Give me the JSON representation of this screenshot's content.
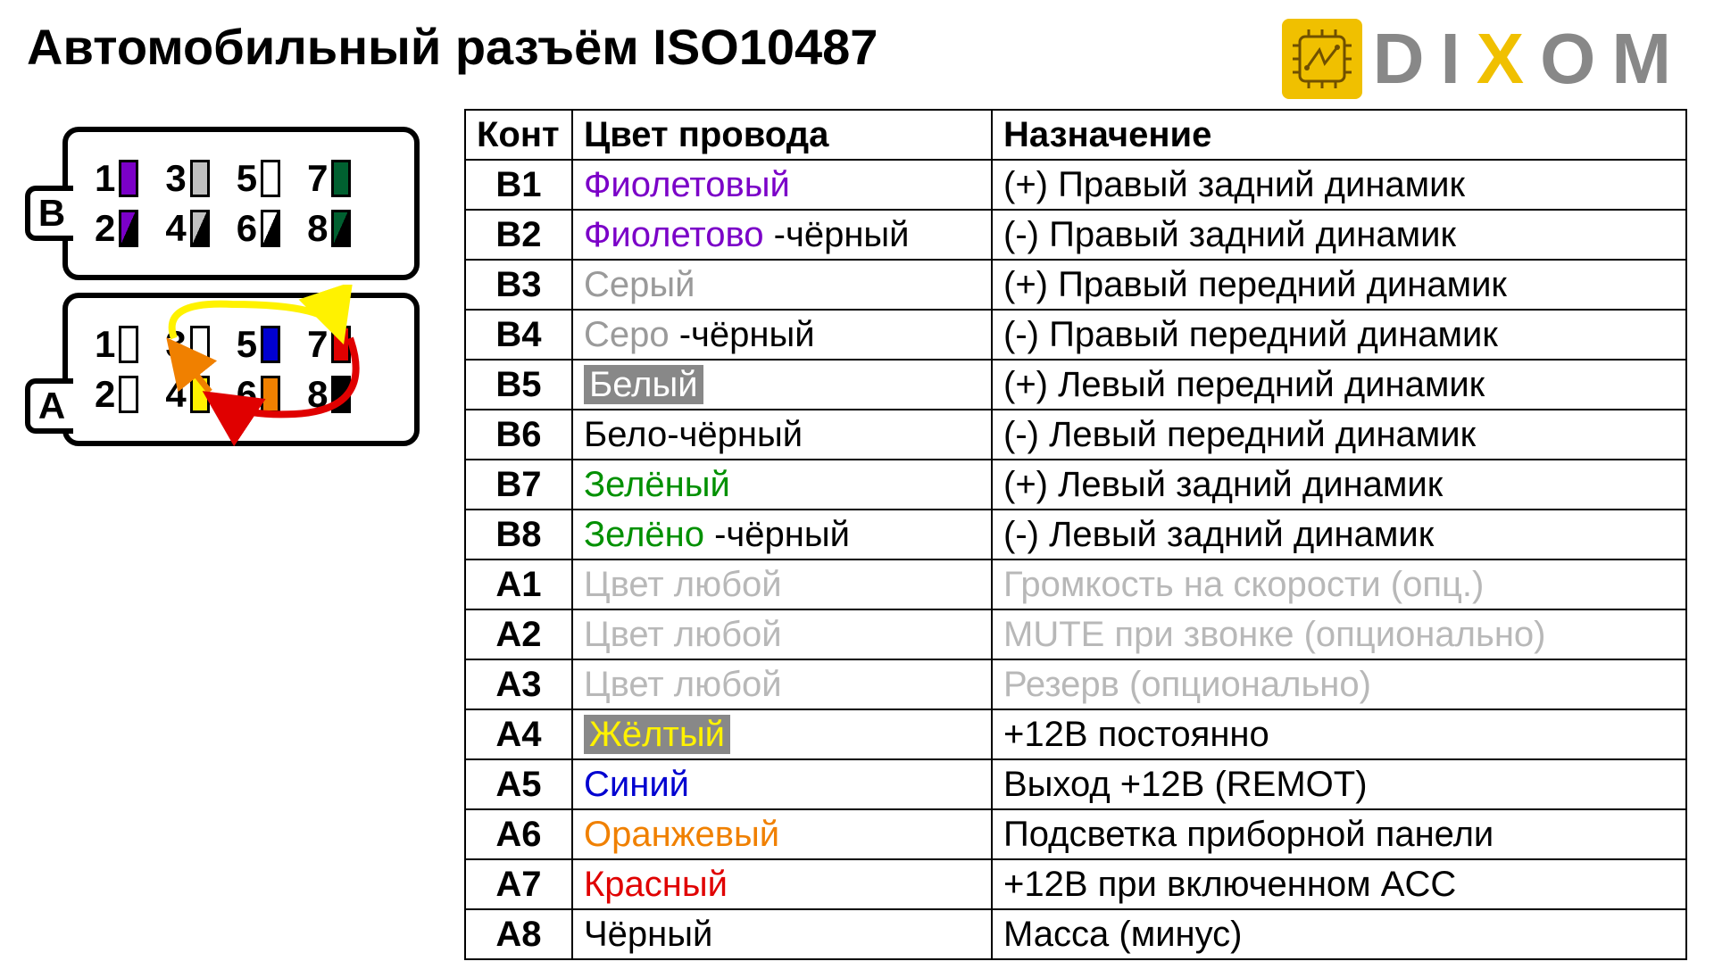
{
  "title": "Автомобильный разъём ISO10487",
  "logo": {
    "text_d": "D",
    "text_i": "I",
    "text_x": "X",
    "text_o": "O",
    "text_m": "M",
    "brand_yellow": "#f0c000",
    "brand_gray": "#888888"
  },
  "table": {
    "headers": {
      "pin": "Конт",
      "color": "Цвет провода",
      "func": "Назначение"
    },
    "rows": [
      {
        "pin": "B1",
        "color_parts": [
          {
            "t": "Фиолетовый",
            "c": "#7b00c8"
          }
        ],
        "func": "(+) Правый задний динамик"
      },
      {
        "pin": "B2",
        "color_parts": [
          {
            "t": "Фиолетово",
            "c": "#7b00c8"
          },
          {
            "t": " -чёрный",
            "c": "#000"
          }
        ],
        "func": "(-)  Правый задний динамик"
      },
      {
        "pin": "B3",
        "color_parts": [
          {
            "t": "Серый",
            "c": "#9a9a9a"
          }
        ],
        "func": "(+) Правый передний динамик"
      },
      {
        "pin": "B4",
        "color_parts": [
          {
            "t": "Серо",
            "c": "#9a9a9a"
          },
          {
            "t": " -чёрный",
            "c": "#000"
          }
        ],
        "func": "(-)  Правый передний динамик"
      },
      {
        "pin": "B5",
        "color_parts": [
          {
            "t": "Белый",
            "c": "#fff",
            "hl": "gray"
          }
        ],
        "func": "(+) Левый передний динамик"
      },
      {
        "pin": "B6",
        "color_parts": [
          {
            "t": "Бело-чёрный",
            "c": "#000"
          }
        ],
        "func": "(-)  Левый передний динамик"
      },
      {
        "pin": "B7",
        "color_parts": [
          {
            "t": "Зелёный",
            "c": "#009000"
          }
        ],
        "func": "(+) Левый задний динамик"
      },
      {
        "pin": "B8",
        "color_parts": [
          {
            "t": "Зелёно",
            "c": "#009000"
          },
          {
            "t": " -чёрный",
            "c": "#000"
          }
        ],
        "func": "(-)  Левый задний динамик"
      },
      {
        "pin": "A1",
        "color_parts": [
          {
            "t": "Цвет любой",
            "c": "#b8b8b8"
          }
        ],
        "func": "Громкость на скорости (опц.)",
        "func_c": "#b8b8b8"
      },
      {
        "pin": "A2",
        "color_parts": [
          {
            "t": "Цвет любой",
            "c": "#b8b8b8"
          }
        ],
        "func": "MUTE при звонке (опционально)",
        "func_c": "#b8b8b8"
      },
      {
        "pin": "A3",
        "color_parts": [
          {
            "t": "Цвет любой",
            "c": "#b8b8b8"
          }
        ],
        "func": "Резерв (опционально)",
        "func_c": "#b8b8b8"
      },
      {
        "pin": "A4",
        "color_parts": [
          {
            "t": "Жёлтый",
            "c": "#fff200",
            "hl": "gray-yellow"
          }
        ],
        "func": "+12В постоянно"
      },
      {
        "pin": "A5",
        "color_parts": [
          {
            "t": "Синий",
            "c": "#0000d0"
          }
        ],
        "func": "Выход +12В (REMOT)"
      },
      {
        "pin": "A6",
        "color_parts": [
          {
            "t": "Оранжевый",
            "c": "#f08000"
          }
        ],
        "func": "Подсветка приборной панели"
      },
      {
        "pin": "A7",
        "color_parts": [
          {
            "t": "Красный",
            "c": "#e00000"
          }
        ],
        "func": "+12В при включенном ACC"
      },
      {
        "pin": "A8",
        "color_parts": [
          {
            "t": "Чёрный",
            "c": "#000"
          }
        ],
        "func": "Масса (минус)"
      }
    ]
  },
  "connector": {
    "block_b": {
      "label": "B",
      "row1": [
        {
          "n": "1",
          "fill": "#7b00c8"
        },
        {
          "n": "3",
          "fill": "#c0c0c0"
        },
        {
          "n": "5",
          "fill": "#ffffff"
        },
        {
          "n": "7",
          "fill": "#006030"
        }
      ],
      "row2": [
        {
          "n": "2",
          "c1": "#7b00c8",
          "c2": "#000"
        },
        {
          "n": "4",
          "c1": "#c0c0c0",
          "c2": "#000"
        },
        {
          "n": "6",
          "c1": "#ffffff",
          "c2": "#000"
        },
        {
          "n": "8",
          "c1": "#006030",
          "c2": "#000"
        }
      ]
    },
    "block_a": {
      "label": "A",
      "row1": [
        {
          "n": "1",
          "fill": "#ffffff"
        },
        {
          "n": "3",
          "fill": "#ffffff"
        },
        {
          "n": "5",
          "fill": "#0000d0"
        },
        {
          "n": "7",
          "fill": "#e00000"
        }
      ],
      "row2": [
        {
          "n": "2",
          "fill": "#ffffff"
        },
        {
          "n": "4",
          "fill": "#fff200"
        },
        {
          "n": "6",
          "fill": "#f08000"
        },
        {
          "n": "8",
          "fill": "#000000"
        }
      ]
    },
    "arrows": {
      "yellow": "#fff200",
      "orange": "#f08000",
      "red": "#e00000"
    }
  }
}
